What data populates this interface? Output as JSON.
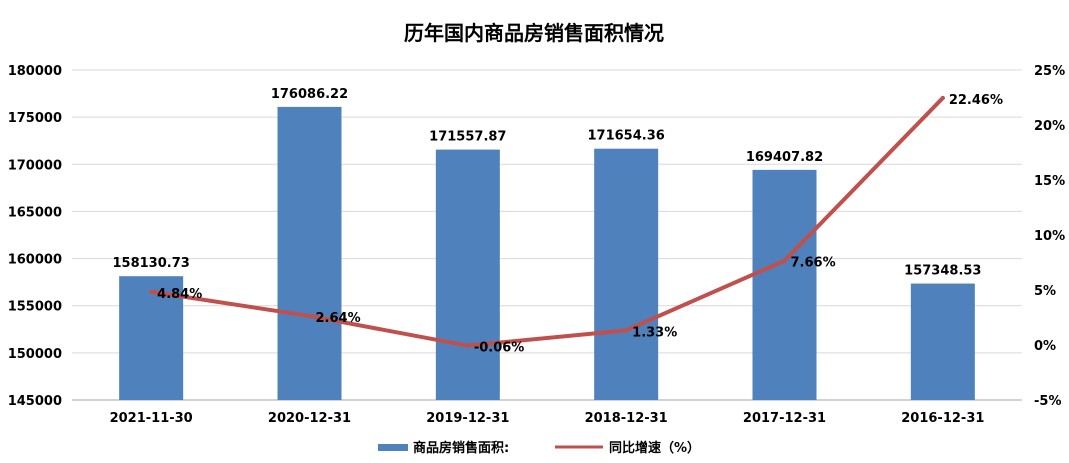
{
  "chart_data": {
    "type": "bar",
    "title": "历年国内商品房销售面积情况",
    "categories": [
      "2021-11-30",
      "2020-12-31",
      "2019-12-31",
      "2018-12-31",
      "2017-12-31",
      "2016-12-31"
    ],
    "series": [
      {
        "name": "商品房销售面积:",
        "type": "bar",
        "axis": "left",
        "values": [
          158130.73,
          176086.22,
          171557.87,
          171654.36,
          169407.82,
          157348.53
        ],
        "value_labels": [
          "158130.73",
          "176086.22",
          "171557.87",
          "171654.36",
          "169407.82",
          "157348.53"
        ]
      },
      {
        "name": "同比增速（%）",
        "type": "line",
        "axis": "right",
        "values": [
          4.84,
          2.64,
          -0.06,
          1.33,
          7.66,
          22.46
        ],
        "value_labels": [
          "4.84%",
          "2.64%",
          "-0.06%",
          "1.33%",
          "7.66%",
          "22.46%"
        ]
      }
    ],
    "ylim": [
      145000,
      180000
    ],
    "y_ticks": [
      145000,
      150000,
      155000,
      160000,
      165000,
      170000,
      175000,
      180000
    ],
    "y2lim": [
      -5,
      25
    ],
    "y2_ticks": [
      -5,
      0,
      5,
      10,
      15,
      20,
      25
    ],
    "y2_tick_labels": [
      "-5%",
      "0%",
      "5%",
      "10%",
      "15%",
      "20%",
      "25%"
    ],
    "gridlines": true,
    "legend_position": "bottom",
    "colors": {
      "bar": "#4f81bd",
      "line": "#c0504d",
      "grid": "#d9d9d9",
      "text": "#000000"
    }
  }
}
